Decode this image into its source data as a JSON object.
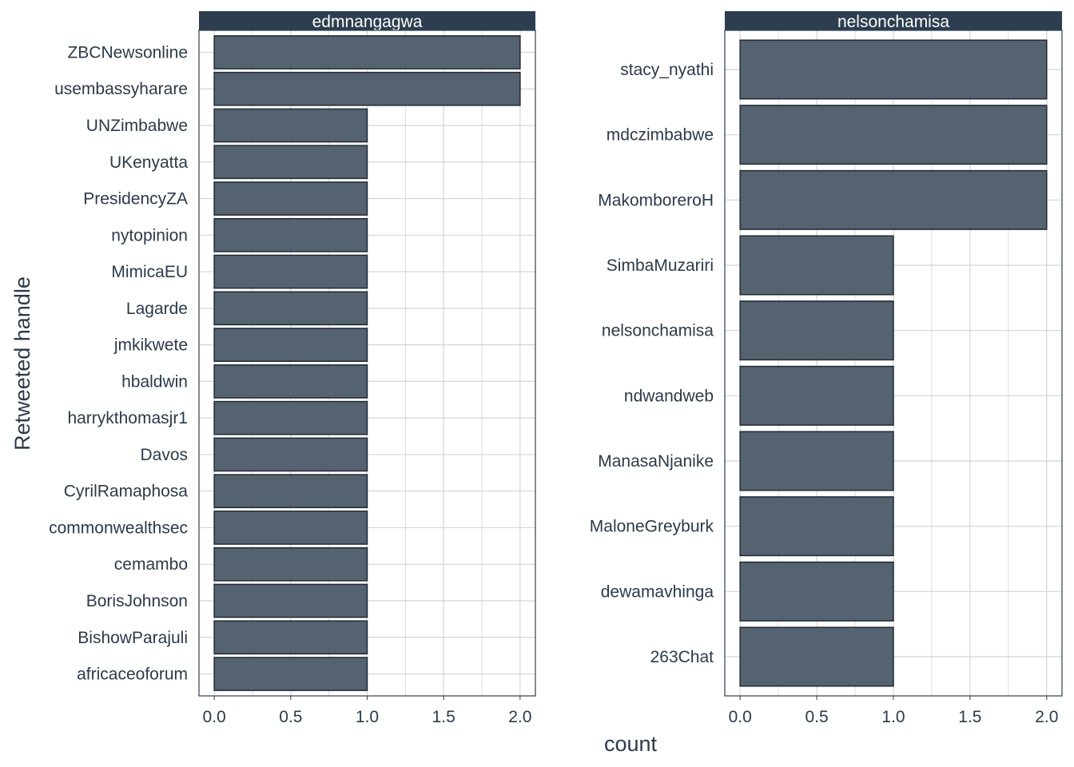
{
  "chart_data": {
    "type": "bar",
    "orientation": "horizontal",
    "xlabel": "count",
    "ylabel": "Retweeted handle",
    "xlim": [
      0,
      2.1
    ],
    "x_ticks": [
      "0.0",
      "0.5",
      "1.0",
      "1.5",
      "2.0"
    ],
    "grid": true,
    "colors": {
      "bar_fill": "#55626f",
      "bar_stroke": "#1f2a36",
      "strip_fill": "#2d3e50",
      "grid": "#d4d4d4",
      "text": "#2b3a4b"
    },
    "panels": [
      {
        "title": "edmnangagwa",
        "categories": [
          "ZBCNewsonline",
          "usembassyharare",
          "UNZimbabwe",
          "UKenyatta",
          "PresidencyZA",
          "nytopinion",
          "MimicaEU",
          "Lagarde",
          "jmkikwete",
          "hbaldwin",
          "harrykthomasjr1",
          "Davos",
          "CyrilRamaphosa",
          "commonwealthsec",
          "cemambo",
          "BorisJohnson",
          "BishowParajuli",
          "africaceoforum"
        ],
        "values": [
          2,
          2,
          1,
          1,
          1,
          1,
          1,
          1,
          1,
          1,
          1,
          1,
          1,
          1,
          1,
          1,
          1,
          1
        ]
      },
      {
        "title": "nelsonchamisa",
        "categories": [
          "stacy_nyathi",
          "mdczimbabwe",
          "MakomboreroH",
          "SimbaMuzariri",
          "nelsonchamisa",
          "ndwandweb",
          "ManasaNjanike",
          "MaloneGreyburk",
          "dewamavhinga",
          "263Chat"
        ],
        "values": [
          2,
          2,
          2,
          1,
          1,
          1,
          1,
          1,
          1,
          1
        ]
      }
    ]
  }
}
